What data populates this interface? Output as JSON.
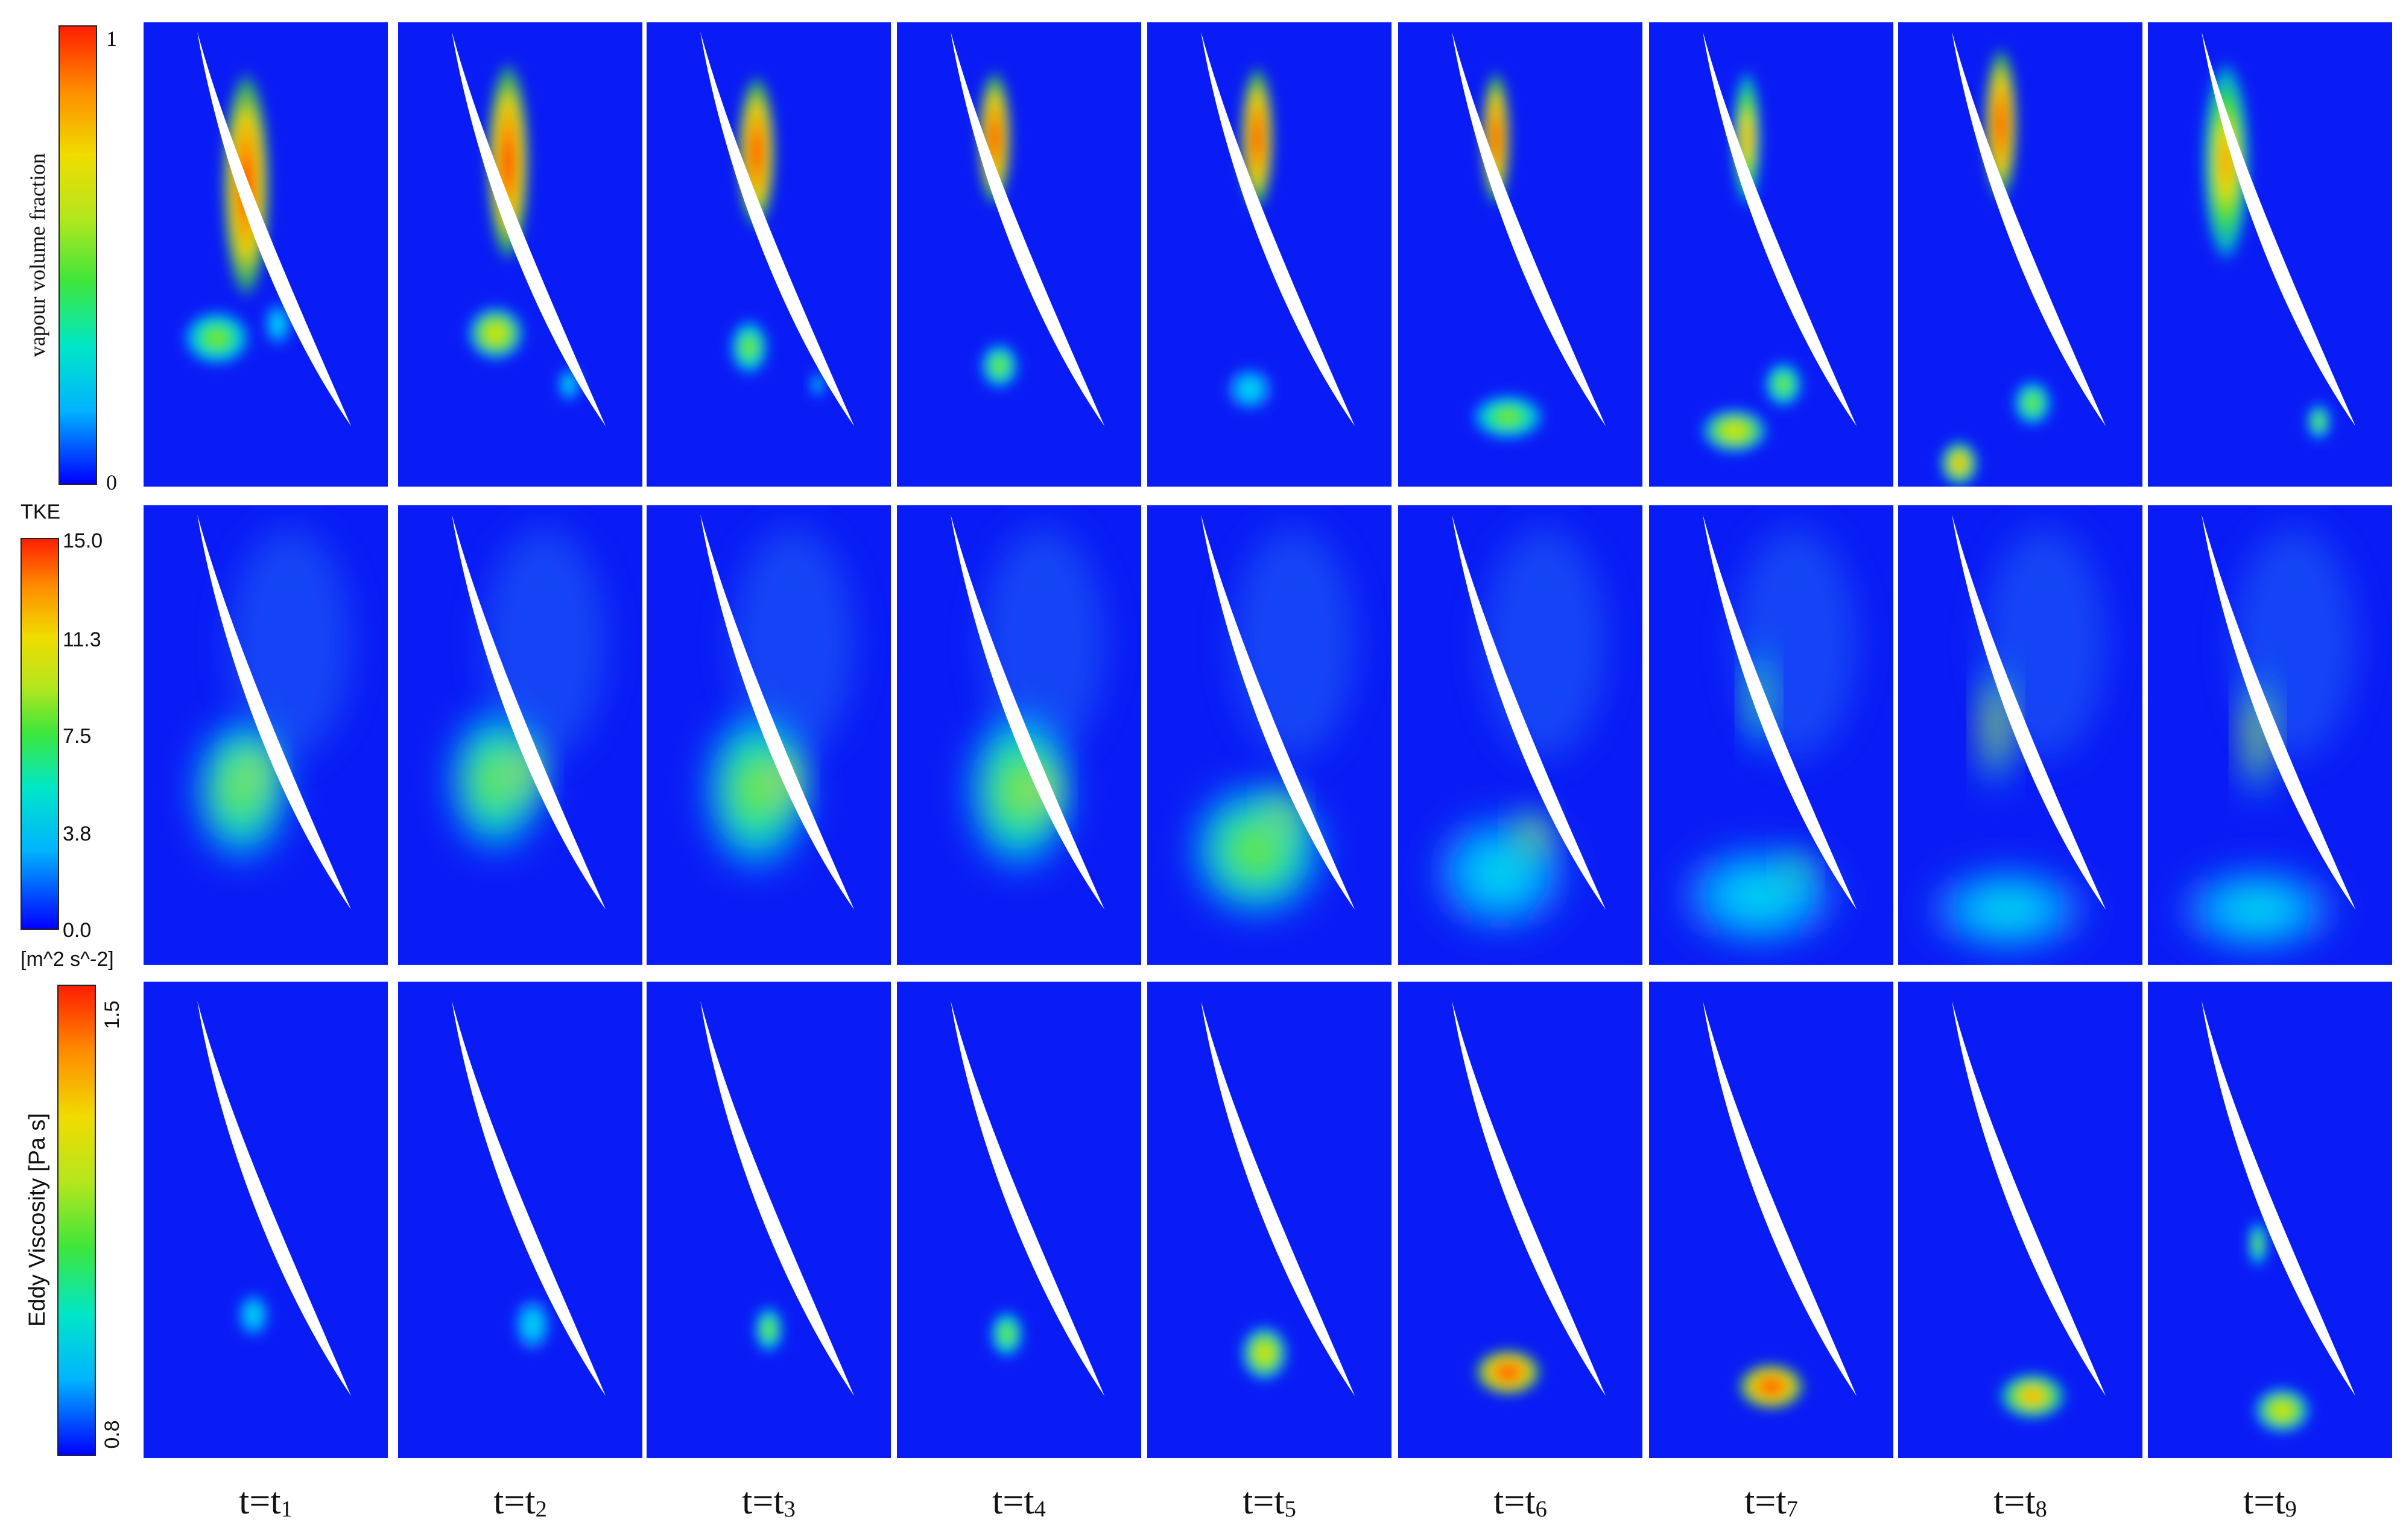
{
  "colors": {
    "background_blue": "#0a1cf5",
    "blade_white": "#ffffff",
    "colormap": [
      "#0000ff",
      "#00b4ff",
      "#00e6c8",
      "#3ce63c",
      "#b4e61e",
      "#f0dc00",
      "#ff8c00",
      "#ff1e00"
    ]
  },
  "rows": [
    {
      "quantity": "vapour volume fraction",
      "colorbar": {
        "title": "vapour volume fraction",
        "unit": "",
        "ticks": [
          "1",
          "0"
        ]
      }
    },
    {
      "quantity": "TKE",
      "colorbar": {
        "title": "TKE",
        "unit": "[m^2 s^-2]",
        "ticks": [
          "15.0",
          "11.3",
          "7.5",
          "3.8",
          "0.0"
        ]
      }
    },
    {
      "quantity": "Eddy Viscosity",
      "colorbar": {
        "title": "Eddy Viscosity [Pa s]",
        "unit": "",
        "ticks": [
          "1.5",
          "0.8"
        ]
      }
    }
  ],
  "time_labels": [
    {
      "prefix": "t=t",
      "sub": "1"
    },
    {
      "prefix": "t=t",
      "sub": "2"
    },
    {
      "prefix": "t=t",
      "sub": "3"
    },
    {
      "prefix": "t=t",
      "sub": "4"
    },
    {
      "prefix": "t=t",
      "sub": "5"
    },
    {
      "prefix": "t=t",
      "sub": "6"
    },
    {
      "prefix": "t=t",
      "sub": "7"
    },
    {
      "prefix": "t=t",
      "sub": "8"
    },
    {
      "prefix": "t=t",
      "sub": "9"
    }
  ]
}
